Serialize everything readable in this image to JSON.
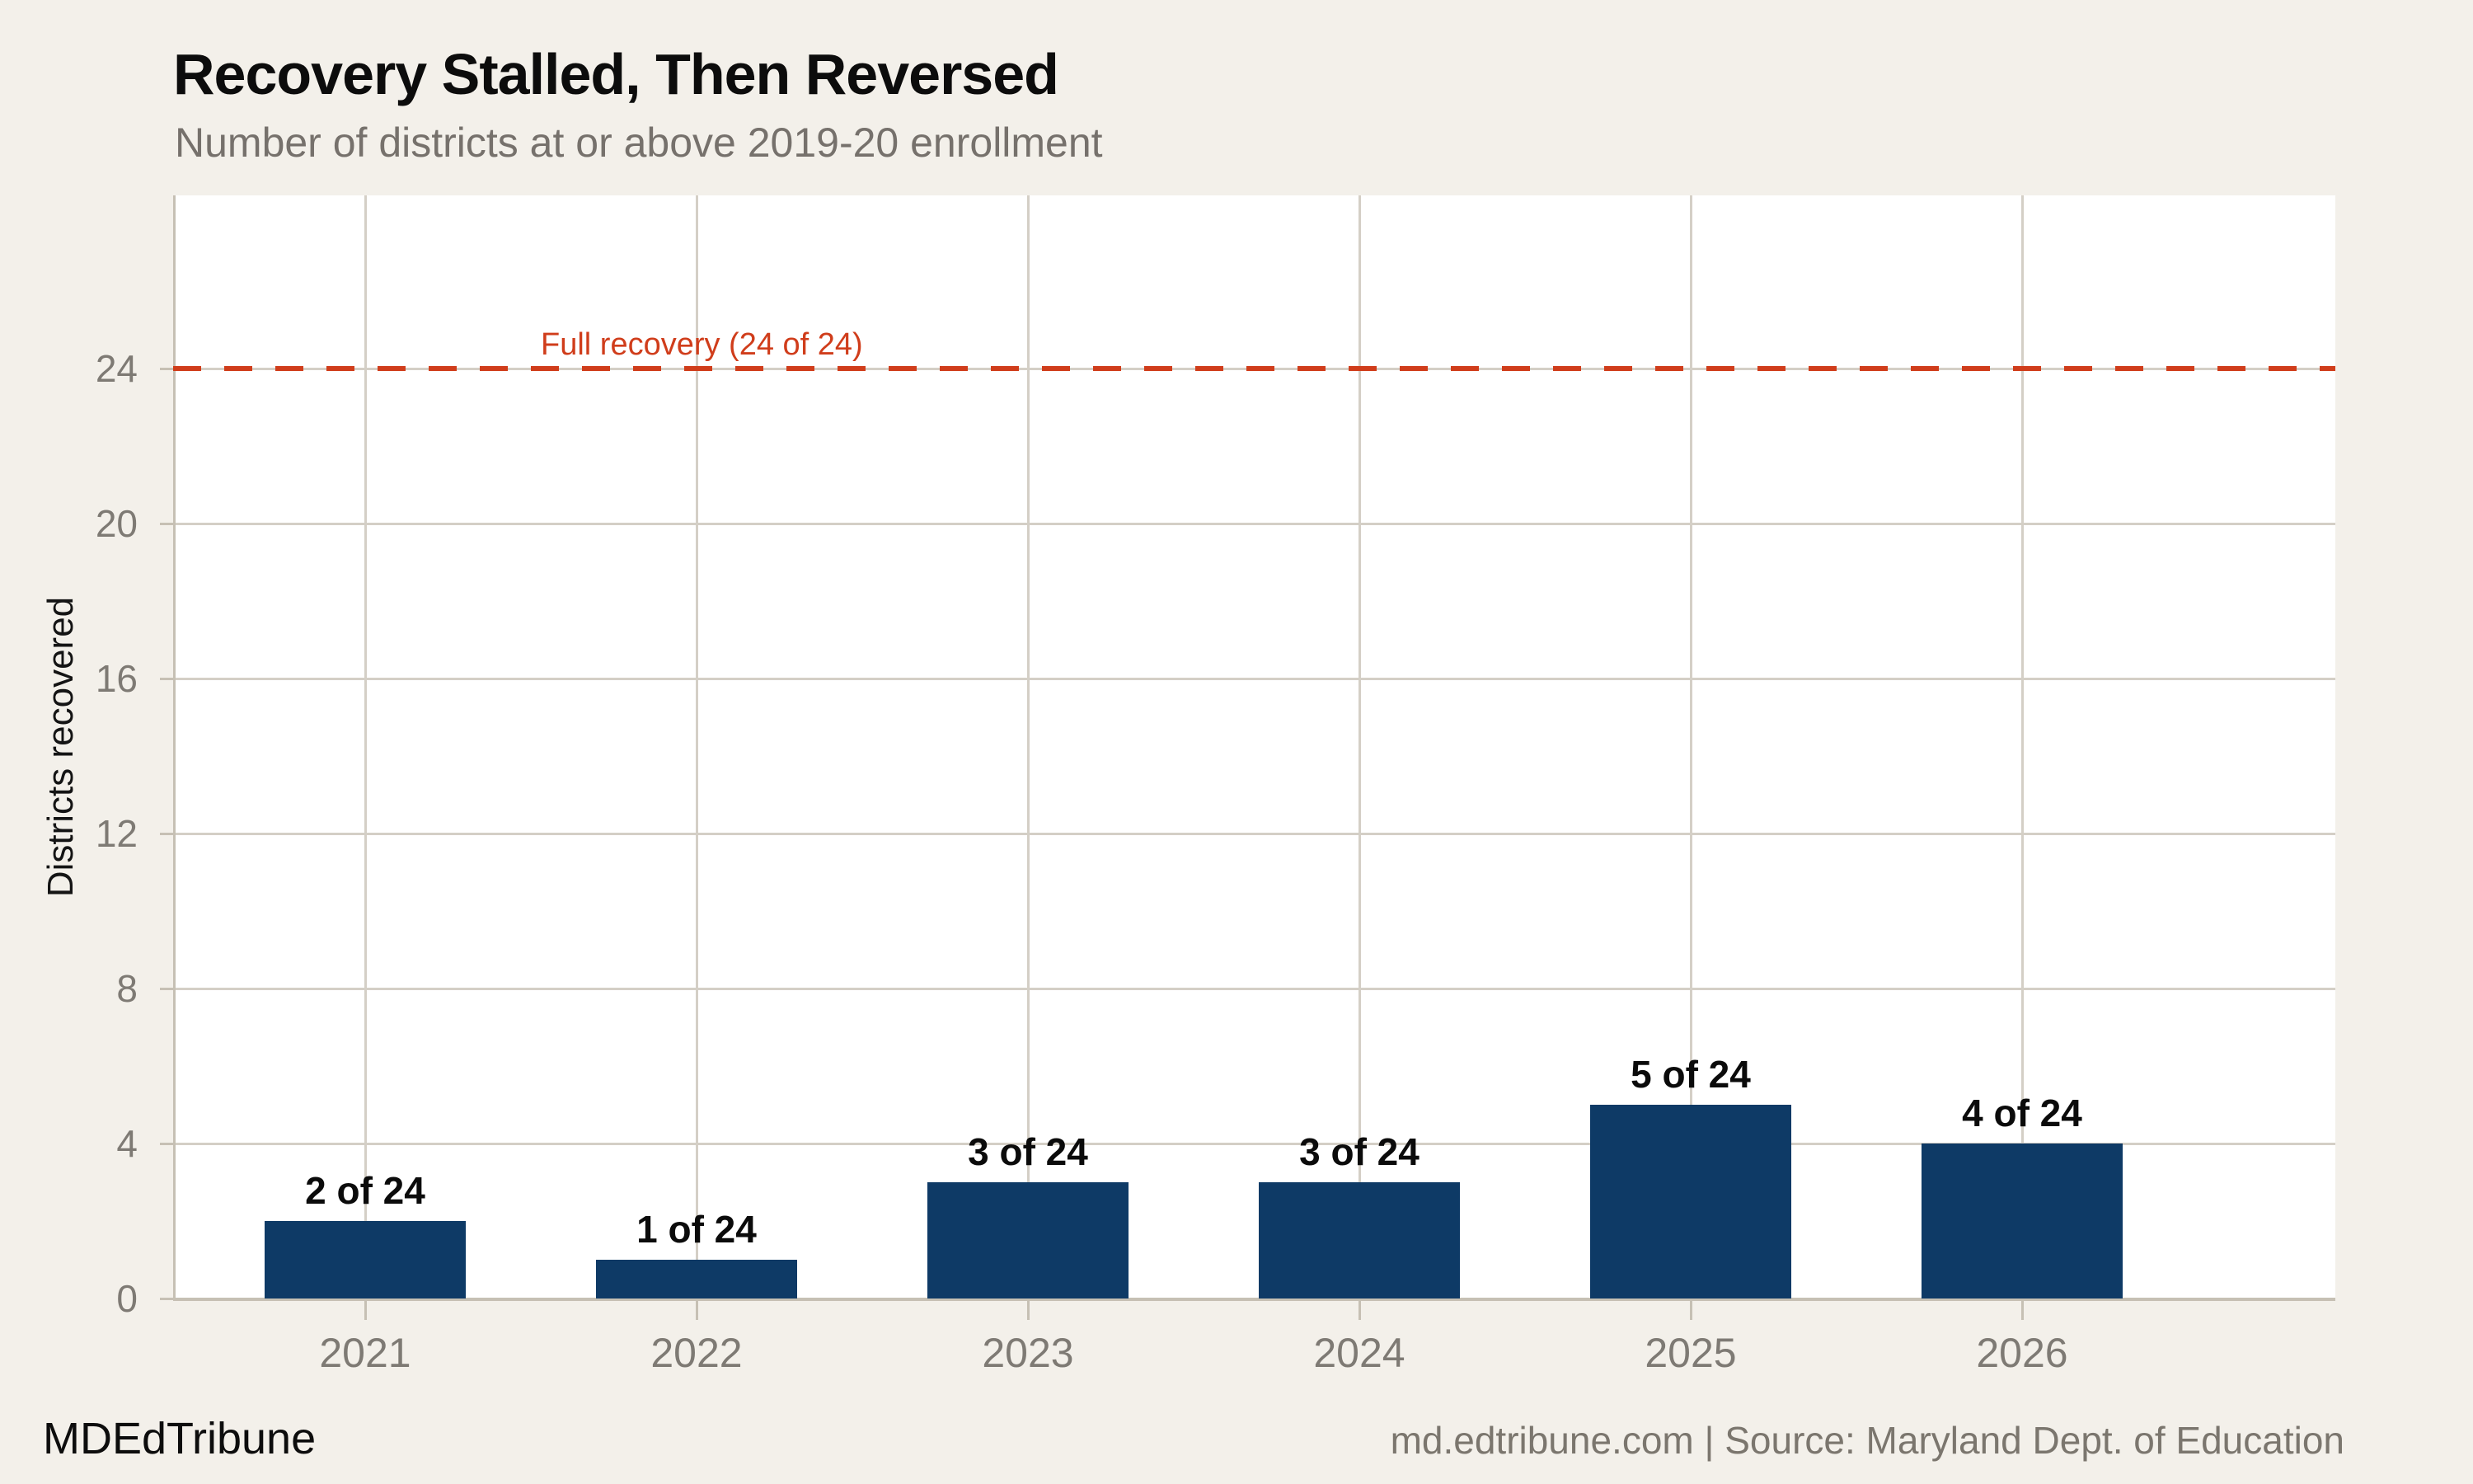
{
  "colors": {
    "background": "#f3f0ea",
    "plot_background": "#ffffff",
    "bar": "#0e3a66",
    "reference": "#d03d1b",
    "gridline": "#d4cfc6",
    "axis": "#c6c0b4",
    "subtitle_text": "#76716c",
    "tick_text": "#7e7a74",
    "footer_text": "#7b766e"
  },
  "footer": {
    "brand": "MDEdTribune",
    "source": "md.edtribune.com | Source: Maryland Dept. of Education"
  },
  "chart_data": {
    "type": "bar",
    "title": "Recovery Stalled, Then Reversed",
    "subtitle": "Number of districts at or above 2019-20 enrollment",
    "xlabel": "",
    "ylabel": "Districts recovered",
    "categories": [
      "2021",
      "2022",
      "2023",
      "2024",
      "2025",
      "2026"
    ],
    "values": [
      2,
      1,
      3,
      3,
      5,
      4
    ],
    "bar_labels": [
      "2 of 24",
      "1 of 24",
      "3 of 24",
      "3 of 24",
      "5 of 24",
      "4 of 24"
    ],
    "total_districts": 24,
    "yticks": [
      0,
      4,
      8,
      12,
      16,
      20,
      24
    ],
    "ylim": [
      0,
      28.5
    ],
    "grid": true,
    "legend": null,
    "reference_line": {
      "value": 24,
      "label": "Full recovery (24 of 24)",
      "style": "dashed"
    }
  }
}
